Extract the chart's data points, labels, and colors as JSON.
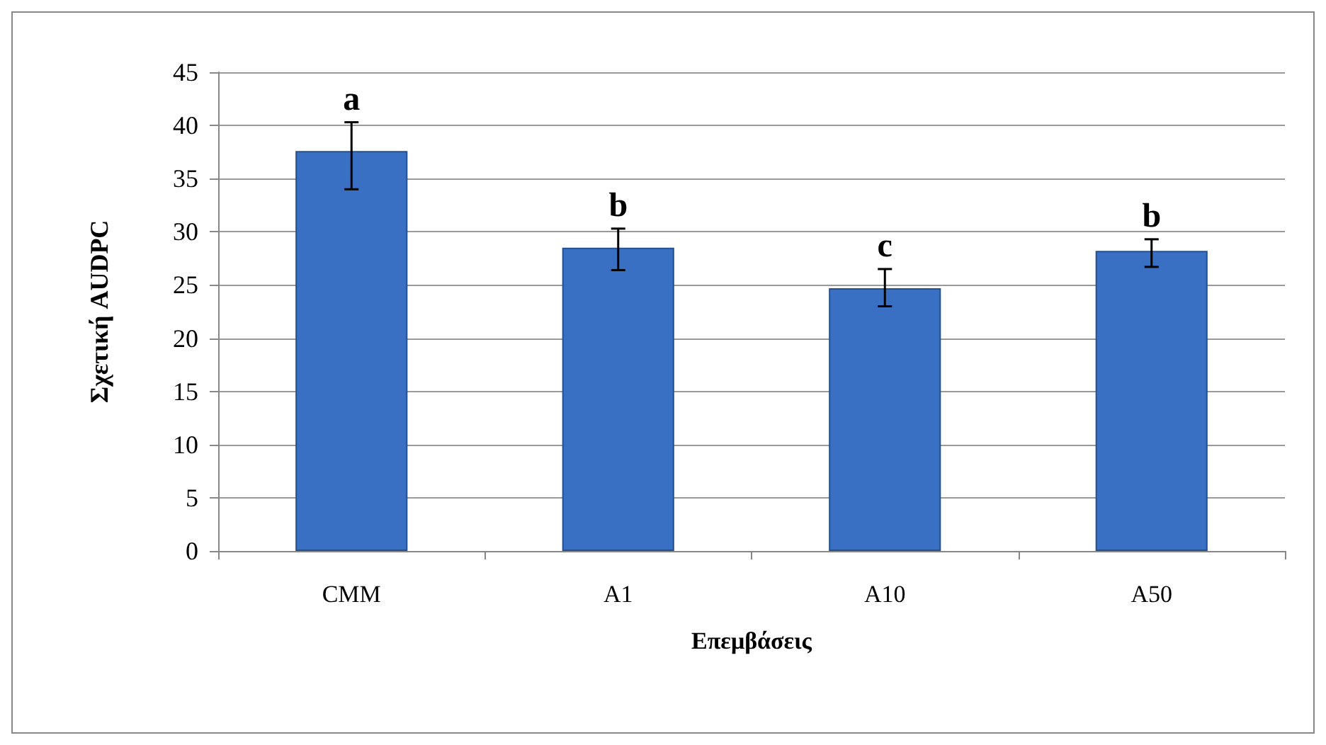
{
  "chart_data": {
    "type": "bar",
    "xlabel": "Επεμβάσεις",
    "ylabel": "Σχετική AUDPC",
    "categories": [
      "CMM",
      "A1",
      "A10",
      "A50"
    ],
    "values": [
      37.6,
      28.5,
      24.7,
      28.2
    ],
    "errors": [
      [
        34.0,
        40.3
      ],
      [
        26.4,
        30.3
      ],
      [
        23.0,
        26.5
      ],
      [
        26.7,
        29.3
      ]
    ],
    "color": "#3a70c4",
    "ylim": [
      0,
      45
    ],
    "yticks": [
      0,
      5,
      10,
      15,
      20,
      25,
      30,
      35,
      40,
      45
    ],
    "grid": "y",
    "annotations": [
      {
        "text": "a",
        "x": "CMM",
        "y": 40.3
      },
      {
        "text": "b",
        "x": "A1",
        "y": 30.3
      },
      {
        "text": "c",
        "x": "A10",
        "y": 26.5
      },
      {
        "text": "b",
        "x": "A50",
        "y": 29.3
      }
    ]
  }
}
